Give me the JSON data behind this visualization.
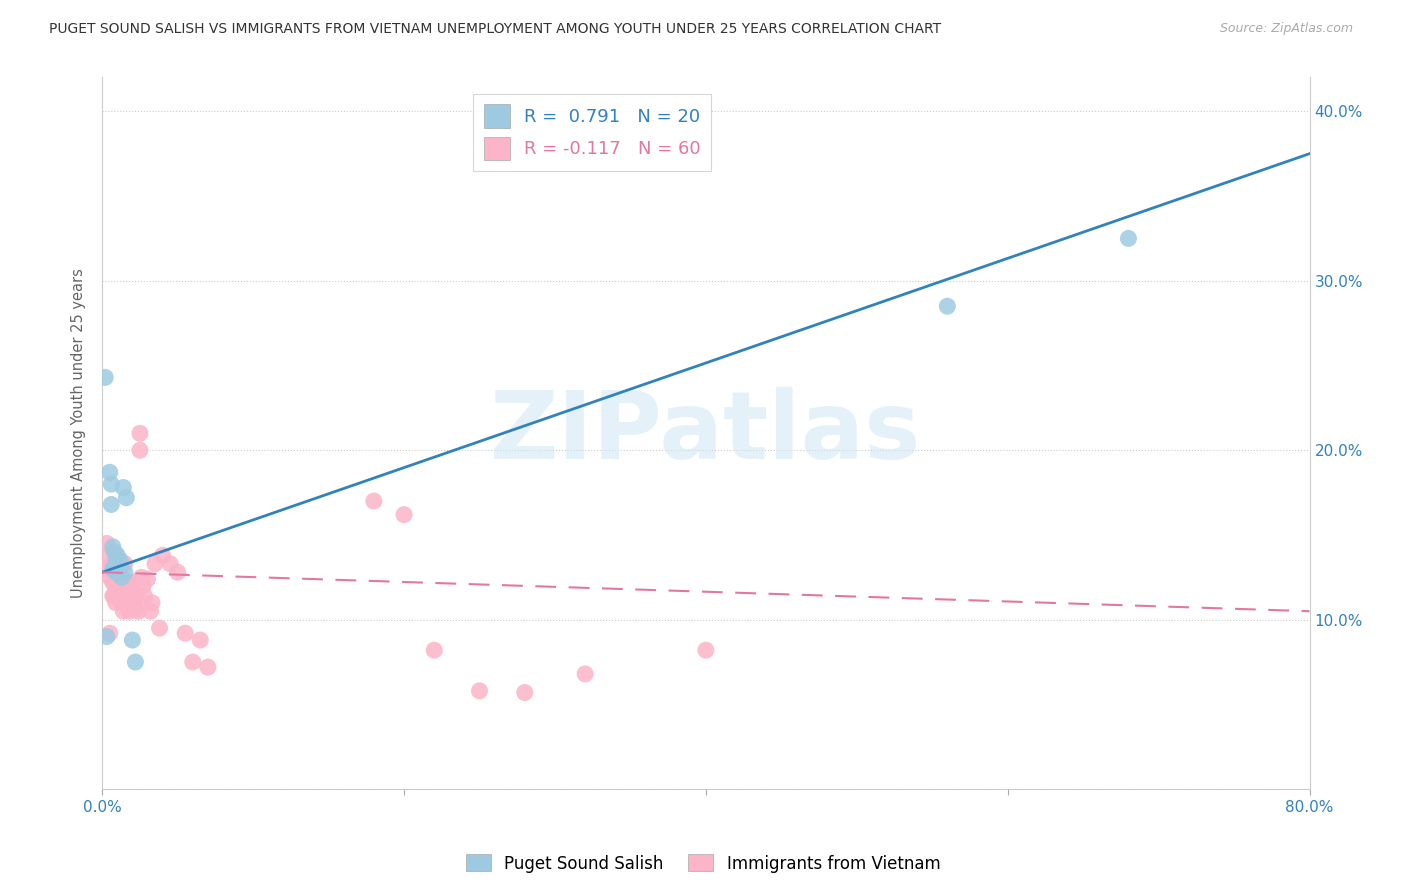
{
  "title": "PUGET SOUND SALISH VS IMMIGRANTS FROM VIETNAM UNEMPLOYMENT AMONG YOUTH UNDER 25 YEARS CORRELATION CHART",
  "source": "Source: ZipAtlas.com",
  "ylabel": "Unemployment Among Youth under 25 years",
  "watermark": "ZIPatlas",
  "xlim": [
    0.0,
    0.8
  ],
  "ylim": [
    0.0,
    0.42
  ],
  "ytick_vals": [
    0.0,
    0.1,
    0.2,
    0.3,
    0.4
  ],
  "ytick_labels_right": [
    "",
    "10.0%",
    "20.0%",
    "30.0%",
    "40.0%"
  ],
  "xtick_vals": [
    0.0,
    0.2,
    0.4,
    0.6,
    0.8
  ],
  "xtick_labels": [
    "0.0%",
    "",
    "",
    "",
    "80.0%"
  ],
  "blue_color": "#9ecae1",
  "blue_line_color": "#3182bd",
  "pink_color": "#fbb4c8",
  "pink_line_color": "#e377a2",
  "blue_line": [
    0.0,
    0.128,
    0.8,
    0.375
  ],
  "pink_line": [
    0.0,
    0.128,
    0.8,
    0.105
  ],
  "blue_points": [
    [
      0.002,
      0.243
    ],
    [
      0.003,
      0.09
    ],
    [
      0.005,
      0.187
    ],
    [
      0.006,
      0.18
    ],
    [
      0.006,
      0.168
    ],
    [
      0.007,
      0.143
    ],
    [
      0.007,
      0.13
    ],
    [
      0.008,
      0.14
    ],
    [
      0.008,
      0.13
    ],
    [
      0.009,
      0.135
    ],
    [
      0.009,
      0.128
    ],
    [
      0.01,
      0.138
    ],
    [
      0.011,
      0.13
    ],
    [
      0.012,
      0.135
    ],
    [
      0.013,
      0.125
    ],
    [
      0.014,
      0.178
    ],
    [
      0.015,
      0.128
    ],
    [
      0.016,
      0.172
    ],
    [
      0.02,
      0.088
    ],
    [
      0.022,
      0.075
    ],
    [
      0.56,
      0.285
    ],
    [
      0.68,
      0.325
    ]
  ],
  "pink_points": [
    [
      0.002,
      0.13
    ],
    [
      0.003,
      0.145
    ],
    [
      0.004,
      0.138
    ],
    [
      0.005,
      0.125
    ],
    [
      0.006,
      0.132
    ],
    [
      0.007,
      0.122
    ],
    [
      0.007,
      0.114
    ],
    [
      0.008,
      0.122
    ],
    [
      0.008,
      0.114
    ],
    [
      0.009,
      0.12
    ],
    [
      0.009,
      0.11
    ],
    [
      0.01,
      0.13
    ],
    [
      0.01,
      0.12
    ],
    [
      0.011,
      0.118
    ],
    [
      0.012,
      0.114
    ],
    [
      0.013,
      0.11
    ],
    [
      0.014,
      0.12
    ],
    [
      0.014,
      0.105
    ],
    [
      0.015,
      0.133
    ],
    [
      0.015,
      0.122
    ],
    [
      0.015,
      0.114
    ],
    [
      0.016,
      0.122
    ],
    [
      0.016,
      0.114
    ],
    [
      0.017,
      0.119
    ],
    [
      0.017,
      0.11
    ],
    [
      0.018,
      0.115
    ],
    [
      0.018,
      0.105
    ],
    [
      0.019,
      0.12
    ],
    [
      0.02,
      0.122
    ],
    [
      0.02,
      0.115
    ],
    [
      0.021,
      0.11
    ],
    [
      0.022,
      0.115
    ],
    [
      0.022,
      0.106
    ],
    [
      0.023,
      0.115
    ],
    [
      0.024,
      0.105
    ],
    [
      0.025,
      0.21
    ],
    [
      0.025,
      0.2
    ],
    [
      0.026,
      0.125
    ],
    [
      0.027,
      0.12
    ],
    [
      0.028,
      0.114
    ],
    [
      0.03,
      0.124
    ],
    [
      0.032,
      0.105
    ],
    [
      0.033,
      0.11
    ],
    [
      0.035,
      0.133
    ],
    [
      0.038,
      0.095
    ],
    [
      0.04,
      0.138
    ],
    [
      0.045,
      0.133
    ],
    [
      0.05,
      0.128
    ],
    [
      0.055,
      0.092
    ],
    [
      0.06,
      0.075
    ],
    [
      0.065,
      0.088
    ],
    [
      0.07,
      0.072
    ],
    [
      0.18,
      0.17
    ],
    [
      0.2,
      0.162
    ],
    [
      0.22,
      0.082
    ],
    [
      0.25,
      0.058
    ],
    [
      0.28,
      0.057
    ],
    [
      0.32,
      0.068
    ],
    [
      0.4,
      0.082
    ],
    [
      0.005,
      0.092
    ]
  ]
}
